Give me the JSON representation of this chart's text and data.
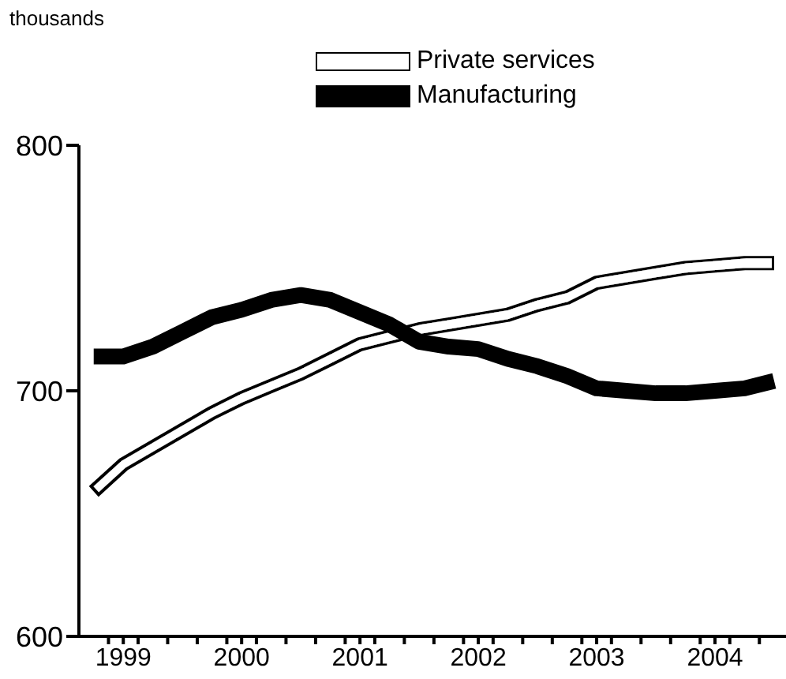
{
  "chart_data": {
    "type": "line",
    "ylabel": "thousands",
    "x": [
      1999.25,
      1999.5,
      1999.75,
      2000,
      2000.25,
      2000.5,
      2000.75,
      2001,
      2001.25,
      2001.5,
      2001.75,
      2002,
      2002.25,
      2002.5,
      2002.75,
      2003,
      2003.25,
      2003.5,
      2003.75,
      2004,
      2004.25,
      2004.5,
      2004.75,
      2005
    ],
    "series": [
      {
        "name": "Private services",
        "color": "#000000",
        "values": [
          659,
          670,
          677,
          684,
          691,
          697,
          702,
          707,
          713,
          719,
          722,
          725,
          727,
          729,
          731,
          735,
          738,
          744,
          746,
          748,
          750,
          751,
          752,
          752
        ]
      },
      {
        "name": "Manufacturing",
        "color": "#000000",
        "values": [
          714,
          714,
          718,
          724,
          730,
          733,
          737,
          739,
          737,
          732,
          727,
          720,
          718,
          717,
          713,
          710,
          706,
          701,
          700,
          699,
          699,
          700,
          701,
          704
        ]
      }
    ],
    "xlim": [
      1999.125,
      2005.1
    ],
    "xticks": [
      {
        "value": 1999.375,
        "label": null
      },
      {
        "value": 1999.5,
        "label": "1999"
      },
      {
        "value": 1999.625,
        "label": null
      },
      {
        "value": 1999.875,
        "label": null
      },
      {
        "value": 2000.125,
        "label": null
      },
      {
        "value": 2000.375,
        "label": null
      },
      {
        "value": 2000.5,
        "label": "2000"
      },
      {
        "value": 2000.625,
        "label": null
      },
      {
        "value": 2000.875,
        "label": null
      },
      {
        "value": 2001.125,
        "label": null
      },
      {
        "value": 2001.375,
        "label": null
      },
      {
        "value": 2001.5,
        "label": "2001"
      },
      {
        "value": 2001.625,
        "label": null
      },
      {
        "value": 2001.875,
        "label": null
      },
      {
        "value": 2002.125,
        "label": null
      },
      {
        "value": 2002.375,
        "label": null
      },
      {
        "value": 2002.5,
        "label": "2002"
      },
      {
        "value": 2002.625,
        "label": null
      },
      {
        "value": 2002.875,
        "label": null
      },
      {
        "value": 2003.125,
        "label": null
      },
      {
        "value": 2003.375,
        "label": null
      },
      {
        "value": 2003.5,
        "label": "2003"
      },
      {
        "value": 2003.625,
        "label": null
      },
      {
        "value": 2003.875,
        "label": null
      },
      {
        "value": 2004.125,
        "label": null
      },
      {
        "value": 2004.375,
        "label": null
      },
      {
        "value": 2004.5,
        "label": "2004"
      },
      {
        "value": 2004.625,
        "label": null
      },
      {
        "value": 2004.875,
        "label": null
      }
    ],
    "ylim": [
      600,
      800
    ],
    "yticks": [
      600,
      700,
      800
    ],
    "legend": "top",
    "marker": "none",
    "line_style": "solid",
    "grid": false
  }
}
